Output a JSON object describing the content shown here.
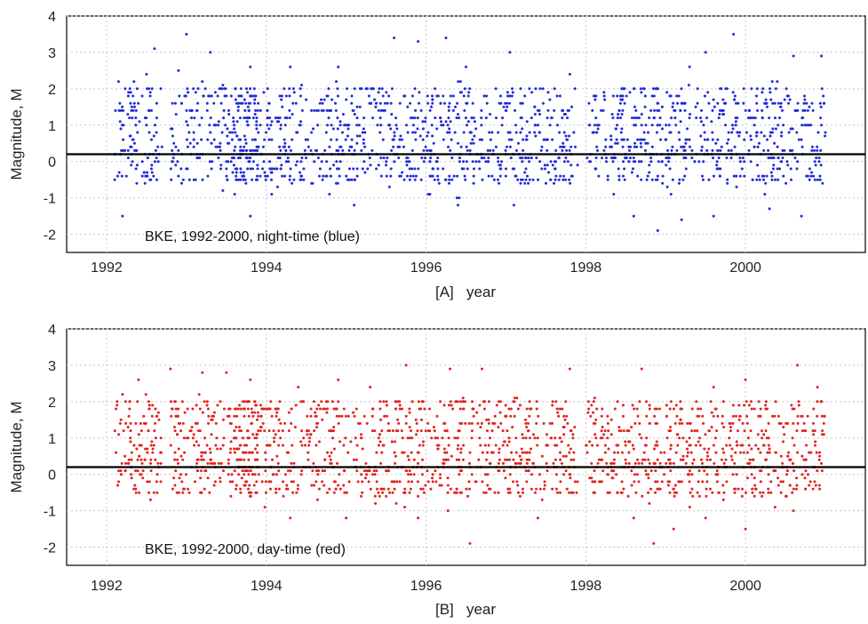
{
  "chart_data": [
    {
      "id": "A",
      "type": "scatter",
      "xlabel": "[A]   year",
      "ylabel": "Magnitude, M",
      "xlim": [
        1991.5,
        2001.5
      ],
      "ylim": [
        -2.5,
        4
      ],
      "xticks": [
        1992,
        1994,
        1996,
        1998,
        2000
      ],
      "yticks": [
        -2,
        -1,
        0,
        1,
        2,
        3,
        4
      ],
      "grid": true,
      "annotation": "BKE, 1992-2000, night-time (blue)",
      "reference_line_y": 0.2,
      "series": [
        {
          "color": "#1f2bd6",
          "active_periods": [
            [
              1992.1,
              1992.7
            ],
            [
              1992.8,
              1993.9
            ],
            [
              1993.6,
              1994.8
            ],
            [
              1994.8,
              1995.9
            ],
            [
              1995.9,
              1997.9
            ],
            [
              1998.0,
              2001.0
            ]
          ],
          "samples": [
            [
              1992.15,
              2.2
            ],
            [
              1992.3,
              1.6
            ],
            [
              1992.5,
              2.4
            ],
            [
              1992.6,
              3.1
            ],
            [
              1992.9,
              2.5
            ],
            [
              1993.0,
              3.5
            ],
            [
              1993.3,
              3.0
            ],
            [
              1993.8,
              2.6
            ],
            [
              1994.3,
              2.6
            ],
            [
              1994.9,
              2.6
            ],
            [
              1995.6,
              3.4
            ],
            [
              1995.9,
              3.3
            ],
            [
              1996.25,
              3.4
            ],
            [
              1996.5,
              2.6
            ],
            [
              1997.05,
              3.0
            ],
            [
              1997.8,
              2.4
            ],
            [
              1999.3,
              2.6
            ],
            [
              1999.5,
              3.0
            ],
            [
              1999.85,
              3.5
            ],
            [
              2000.6,
              2.9
            ],
            [
              2000.95,
              2.9
            ],
            [
              1992.2,
              -1.5
            ],
            [
              1993.8,
              -1.5
            ],
            [
              1995.1,
              -1.2
            ],
            [
              1996.4,
              -1.2
            ],
            [
              1997.1,
              -1.2
            ],
            [
              1998.6,
              -1.5
            ],
            [
              1998.9,
              -1.9
            ],
            [
              1999.2,
              -1.6
            ],
            [
              1999.6,
              -1.5
            ],
            [
              2000.3,
              -1.3
            ],
            [
              2000.7,
              -1.5
            ]
          ]
        }
      ]
    },
    {
      "id": "B",
      "type": "scatter",
      "xlabel": "[B]   year",
      "ylabel": "Magnitude, M",
      "xlim": [
        1991.5,
        2001.5
      ],
      "ylim": [
        -2.5,
        4
      ],
      "xticks": [
        1992,
        1994,
        1996,
        1998,
        2000
      ],
      "yticks": [
        -2,
        -1,
        0,
        1,
        2,
        3,
        4
      ],
      "grid": true,
      "annotation": "BKE, 1992-2000, day-time (red)",
      "reference_line_y": 0.2,
      "series": [
        {
          "color": "#e0231e",
          "active_periods": [
            [
              1992.1,
              1992.7
            ],
            [
              1992.8,
              1993.9
            ],
            [
              1993.6,
              1994.8
            ],
            [
              1994.8,
              1995.9
            ],
            [
              1995.9,
              1997.9
            ],
            [
              1998.0,
              2001.0
            ]
          ],
          "samples": [
            [
              1992.2,
              2.2
            ],
            [
              1992.4,
              2.6
            ],
            [
              1992.8,
              2.9
            ],
            [
              1993.2,
              2.8
            ],
            [
              1993.5,
              2.8
            ],
            [
              1993.8,
              2.6
            ],
            [
              1994.4,
              2.4
            ],
            [
              1994.9,
              2.6
            ],
            [
              1995.3,
              2.4
            ],
            [
              1995.75,
              3.0
            ],
            [
              1996.3,
              2.9
            ],
            [
              1996.7,
              2.9
            ],
            [
              1997.8,
              2.9
            ],
            [
              1998.7,
              2.9
            ],
            [
              1999.6,
              2.4
            ],
            [
              2000.0,
              2.6
            ],
            [
              2000.65,
              3.0
            ],
            [
              2000.9,
              2.4
            ],
            [
              1992.55,
              -0.7
            ],
            [
              1994.3,
              -1.2
            ],
            [
              1995.0,
              -1.2
            ],
            [
              1995.9,
              -1.2
            ],
            [
              1996.55,
              -1.9
            ],
            [
              1997.4,
              -1.2
            ],
            [
              1998.6,
              -1.2
            ],
            [
              1998.85,
              -1.9
            ],
            [
              1999.1,
              -1.5
            ],
            [
              1999.5,
              -1.2
            ],
            [
              2000.0,
              -1.5
            ],
            [
              2000.6,
              -1.0
            ]
          ]
        }
      ]
    }
  ]
}
